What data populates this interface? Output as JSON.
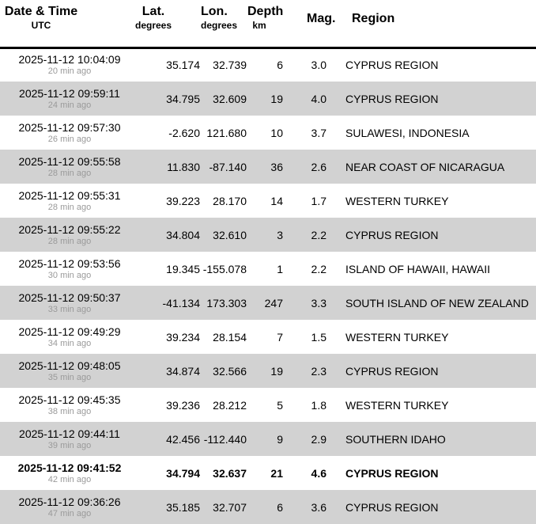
{
  "table": {
    "header": {
      "datetime": {
        "label": "Date & Time",
        "sub": "UTC"
      },
      "lat": {
        "label": "Lat.",
        "sub": "degrees"
      },
      "lon": {
        "label": "Lon.",
        "sub": "degrees"
      },
      "depth": {
        "label": "Depth",
        "sub": "km"
      },
      "mag": {
        "label": "Mag."
      },
      "region": {
        "label": "Region"
      }
    },
    "rows": [
      {
        "datetime": "2025-11-12 10:04:09",
        "ago": "20 min ago",
        "lat": "35.174",
        "lon": "32.739",
        "depth": "6",
        "mag": "3.0",
        "region": "CYPRUS REGION",
        "emphasis": false
      },
      {
        "datetime": "2025-11-12 09:59:11",
        "ago": "24 min ago",
        "lat": "34.795",
        "lon": "32.609",
        "depth": "19",
        "mag": "4.0",
        "region": "CYPRUS REGION",
        "emphasis": false
      },
      {
        "datetime": "2025-11-12 09:57:30",
        "ago": "26 min ago",
        "lat": "-2.620",
        "lon": "121.680",
        "depth": "10",
        "mag": "3.7",
        "region": "SULAWESI, INDONESIA",
        "emphasis": false
      },
      {
        "datetime": "2025-11-12 09:55:58",
        "ago": "28 min ago",
        "lat": "11.830",
        "lon": "-87.140",
        "depth": "36",
        "mag": "2.6",
        "region": "NEAR COAST OF NICARAGUA",
        "emphasis": false
      },
      {
        "datetime": "2025-11-12 09:55:31",
        "ago": "28 min ago",
        "lat": "39.223",
        "lon": "28.170",
        "depth": "14",
        "mag": "1.7",
        "region": "WESTERN TURKEY",
        "emphasis": false
      },
      {
        "datetime": "2025-11-12 09:55:22",
        "ago": "28 min ago",
        "lat": "34.804",
        "lon": "32.610",
        "depth": "3",
        "mag": "2.2",
        "region": "CYPRUS REGION",
        "emphasis": false
      },
      {
        "datetime": "2025-11-12 09:53:56",
        "ago": "30 min ago",
        "lat": "19.345",
        "lon": "-155.078",
        "depth": "1",
        "mag": "2.2",
        "region": "ISLAND OF HAWAII, HAWAII",
        "emphasis": false
      },
      {
        "datetime": "2025-11-12 09:50:37",
        "ago": "33 min ago",
        "lat": "-41.134",
        "lon": "173.303",
        "depth": "247",
        "mag": "3.3",
        "region": "SOUTH ISLAND OF NEW ZEALAND",
        "emphasis": false
      },
      {
        "datetime": "2025-11-12 09:49:29",
        "ago": "34 min ago",
        "lat": "39.234",
        "lon": "28.154",
        "depth": "7",
        "mag": "1.5",
        "region": "WESTERN TURKEY",
        "emphasis": false
      },
      {
        "datetime": "2025-11-12 09:48:05",
        "ago": "35 min ago",
        "lat": "34.874",
        "lon": "32.566",
        "depth": "19",
        "mag": "2.3",
        "region": "CYPRUS REGION",
        "emphasis": false
      },
      {
        "datetime": "2025-11-12 09:45:35",
        "ago": "38 min ago",
        "lat": "39.236",
        "lon": "28.212",
        "depth": "5",
        "mag": "1.8",
        "region": "WESTERN TURKEY",
        "emphasis": false
      },
      {
        "datetime": "2025-11-12 09:44:11",
        "ago": "39 min ago",
        "lat": "42.456",
        "lon": "-112.440",
        "depth": "9",
        "mag": "2.9",
        "region": "SOUTHERN IDAHO",
        "emphasis": false
      },
      {
        "datetime": "2025-11-12 09:41:52",
        "ago": "42 min ago",
        "lat": "34.794",
        "lon": "32.637",
        "depth": "21",
        "mag": "4.6",
        "region": "CYPRUS REGION",
        "emphasis": true
      },
      {
        "datetime": "2025-11-12 09:36:26",
        "ago": "47 min ago",
        "lat": "35.185",
        "lon": "32.707",
        "depth": "6",
        "mag": "3.6",
        "region": "CYPRUS REGION",
        "emphasis": false
      }
    ]
  },
  "colors": {
    "row_alt_background": "#d2d2d2",
    "time_ago_text": "#9a9a9a",
    "header_rule": "#000000",
    "text": "#000000"
  }
}
